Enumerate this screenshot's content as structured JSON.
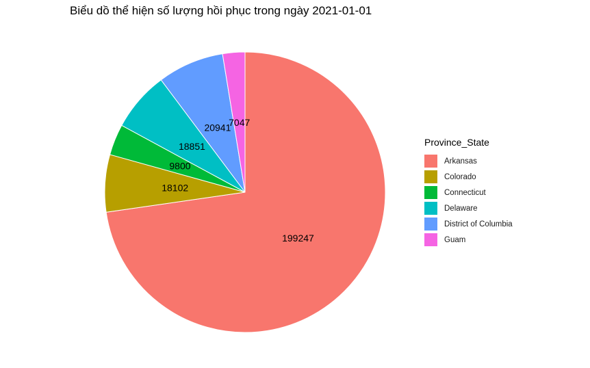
{
  "chart_data": {
    "type": "pie",
    "title": "Biểu dồ thể hiện số lượng hồi phục trong ngày 2021-01-01",
    "legend_title": "Province_State",
    "legend_position": "right",
    "slices": [
      {
        "label": "Arkansas",
        "value": 199247,
        "value_label": "199247",
        "color": "#F8766D"
      },
      {
        "label": "Colorado",
        "value": 18102,
        "value_label": "18102",
        "color": "#B79F00"
      },
      {
        "label": "Connecticut",
        "value": 9800,
        "value_label": "9800",
        "color": "#00BA38"
      },
      {
        "label": "Delaware",
        "value": 18851,
        "value_label": "18851",
        "color": "#00BFC4"
      },
      {
        "label": "District of Columbia",
        "value": 20941,
        "value_label": "20941",
        "color": "#619CFF"
      },
      {
        "label": "Guam",
        "value": 7047,
        "value_label": "7047",
        "color": "#F564E3"
      }
    ]
  }
}
